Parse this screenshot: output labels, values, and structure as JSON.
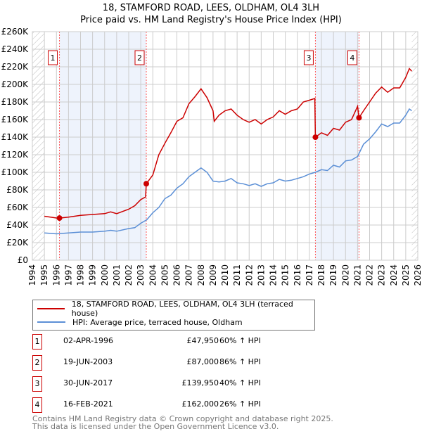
{
  "chart_data": {
    "type": "line",
    "title": "18, STAMFORD ROAD, LEES, OLDHAM, OL4 3LH",
    "subtitle": "Price paid vs. HM Land Registry's House Price Index (HPI)",
    "xlim": [
      1994,
      2026
    ],
    "ylim": [
      0,
      260000
    ],
    "x_ticks": [
      "1994",
      "1995",
      "1996",
      "1997",
      "1998",
      "1999",
      "2000",
      "2001",
      "2002",
      "2003",
      "2004",
      "2005",
      "2006",
      "2007",
      "2008",
      "2009",
      "2010",
      "2011",
      "2012",
      "2013",
      "2014",
      "2015",
      "2016",
      "2017",
      "2018",
      "2019",
      "2020",
      "2021",
      "2022",
      "2023",
      "2024",
      "2025",
      "2026"
    ],
    "y_ticks": [
      "£0",
      "£20K",
      "£40K",
      "£60K",
      "£80K",
      "£100K",
      "£120K",
      "£140K",
      "£160K",
      "£180K",
      "£200K",
      "£220K",
      "£240K",
      "£260K"
    ],
    "grid": true,
    "series": [
      {
        "name": "18, STAMFORD ROAD, LEES, OLDHAM, OL4 3LH (terraced house)",
        "color": "#cc0000",
        "x": [
          1995,
          1996,
          1996.25,
          1997,
          1998,
          1999,
          2000,
          2000.5,
          2001,
          2002,
          2002.5,
          2003,
          2003.4,
          2003.46,
          2004,
          2004.5,
          2005,
          2005.5,
          2006,
          2006.5,
          2007,
          2007.5,
          2008,
          2008.5,
          2009,
          2009.1,
          2009.5,
          2010,
          2010.5,
          2011,
          2011.5,
          2012,
          2012.5,
          2013,
          2013.5,
          2014,
          2014.5,
          2015,
          2015.5,
          2016,
          2016.5,
          2017,
          2017.45,
          2017.5,
          2018,
          2018.5,
          2019,
          2019.5,
          2020,
          2020.5,
          2021,
          2021.12,
          2021.5,
          2022,
          2022.5,
          2023,
          2023.5,
          2024,
          2024.5,
          2025,
          2025.3,
          2025.5
        ],
        "y": [
          50000,
          48000,
          47950,
          49000,
          51000,
          52000,
          53000,
          55000,
          53000,
          58000,
          62000,
          69000,
          72000,
          87000,
          97000,
          120000,
          133000,
          145000,
          158000,
          162000,
          178000,
          186000,
          195000,
          185000,
          170000,
          158000,
          165000,
          170000,
          172000,
          165000,
          160000,
          157000,
          160000,
          155000,
          160000,
          163000,
          170000,
          166000,
          170000,
          172000,
          180000,
          182000,
          184000,
          139950,
          145000,
          142000,
          150000,
          148000,
          157000,
          160000,
          175000,
          162000,
          170000,
          180000,
          190000,
          197000,
          191000,
          196000,
          196000,
          208000,
          218000,
          215000
        ]
      },
      {
        "name": "HPI: Average price, terraced house, Oldham",
        "color": "#5b8fd6",
        "x": [
          1995,
          1996,
          1997,
          1998,
          1999,
          2000,
          2000.5,
          2001,
          2002,
          2002.5,
          2003,
          2003.5,
          2004,
          2004.5,
          2005,
          2005.5,
          2006,
          2006.5,
          2007,
          2007.5,
          2008,
          2008.5,
          2009,
          2009.5,
          2010,
          2010.5,
          2011,
          2011.5,
          2012,
          2012.5,
          2013,
          2013.5,
          2014,
          2014.5,
          2015,
          2015.5,
          2016,
          2016.5,
          2017,
          2017.5,
          2018,
          2018.5,
          2019,
          2019.5,
          2020,
          2020.5,
          2021,
          2021.5,
          2022,
          2022.5,
          2023,
          2023.5,
          2024,
          2024.5,
          2025,
          2025.3,
          2025.5
        ],
        "y": [
          31000,
          30000,
          31000,
          32000,
          32000,
          33000,
          34000,
          33000,
          36000,
          37000,
          42000,
          46000,
          54000,
          60000,
          70000,
          74000,
          82000,
          87000,
          95000,
          100000,
          105000,
          100000,
          90000,
          89000,
          90000,
          93000,
          88000,
          87000,
          85000,
          87000,
          84000,
          87000,
          88000,
          92000,
          90000,
          91000,
          93000,
          95000,
          98000,
          100000,
          103000,
          102000,
          108000,
          106000,
          113000,
          114000,
          118000,
          132000,
          138000,
          146000,
          155000,
          152000,
          156000,
          156000,
          165000,
          172000,
          170000
        ]
      }
    ],
    "shaded_ranges": [
      [
        1996.25,
        2003.46
      ],
      [
        2017.5,
        2021.12
      ]
    ],
    "hatched_ranges": [
      [
        1994,
        1995
      ],
      [
        2025.5,
        2026
      ]
    ],
    "sales": [
      {
        "label": "1",
        "x": 1996.25,
        "y": 47950
      },
      {
        "label": "2",
        "x": 2003.46,
        "y": 87000
      },
      {
        "label": "3",
        "x": 2017.5,
        "y": 139950
      },
      {
        "label": "4",
        "x": 2021.12,
        "y": 162000
      }
    ],
    "legend_position": "bottom"
  },
  "table": [
    {
      "num": "1",
      "date": "02-APR-1996",
      "price": "£47,950",
      "hpi": "60% ↑ HPI"
    },
    {
      "num": "2",
      "date": "19-JUN-2003",
      "price": "£87,000",
      "hpi": "86% ↑ HPI"
    },
    {
      "num": "3",
      "date": "30-JUN-2017",
      "price": "£139,950",
      "hpi": "40% ↑ HPI"
    },
    {
      "num": "4",
      "date": "16-FEB-2021",
      "price": "£162,000",
      "hpi": "26% ↑ HPI"
    }
  ],
  "footer": {
    "line1": "Contains HM Land Registry data © Crown copyright and database right 2025.",
    "line2": "This data is licensed under the Open Government Licence v3.0."
  }
}
